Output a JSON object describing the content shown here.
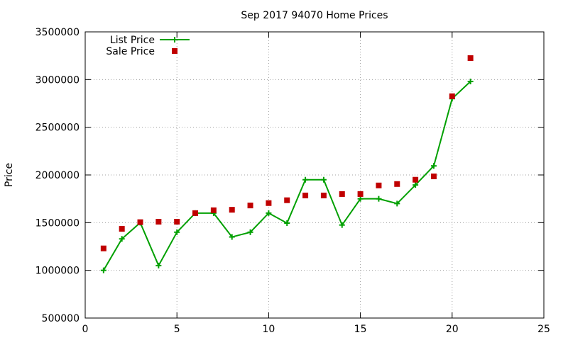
{
  "chart_data": {
    "type": "line",
    "title": "Sep 2017 94070 Home Prices",
    "xlabel": "",
    "ylabel": "Price",
    "xlim": [
      0,
      25
    ],
    "ylim": [
      500000,
      3500000
    ],
    "xticks": [
      0,
      5,
      10,
      15,
      20,
      25
    ],
    "yticks": [
      500000,
      1000000,
      1500000,
      2000000,
      2500000,
      3000000,
      3500000
    ],
    "grid": true,
    "legend_position": "top-left",
    "series": [
      {
        "name": "List Price",
        "style": "line-plus",
        "color": "#00a000",
        "x": [
          1,
          2,
          3,
          4,
          5,
          6,
          7,
          8,
          9,
          10,
          11,
          12,
          13,
          14,
          15,
          16,
          17,
          18,
          19,
          20,
          21
        ],
        "values": [
          1000000,
          1330000,
          1500000,
          1050000,
          1400000,
          1600000,
          1600000,
          1350000,
          1400000,
          1600000,
          1495000,
          1950000,
          1950000,
          1475000,
          1750000,
          1750000,
          1700000,
          1895000,
          2095000,
          2800000,
          2980000
        ]
      },
      {
        "name": "Sale Price",
        "style": "square",
        "color": "#c00000",
        "x": [
          1,
          2,
          3,
          4,
          5,
          6,
          7,
          8,
          9,
          10,
          11,
          12,
          13,
          14,
          15,
          16,
          17,
          18,
          19,
          20,
          21
        ],
        "values": [
          1230000,
          1435000,
          1505000,
          1510000,
          1510000,
          1600000,
          1630000,
          1635000,
          1680000,
          1705000,
          1735000,
          1785000,
          1785000,
          1800000,
          1800000,
          1890000,
          1905000,
          1950000,
          1985000,
          2825000,
          3225000
        ]
      }
    ]
  }
}
